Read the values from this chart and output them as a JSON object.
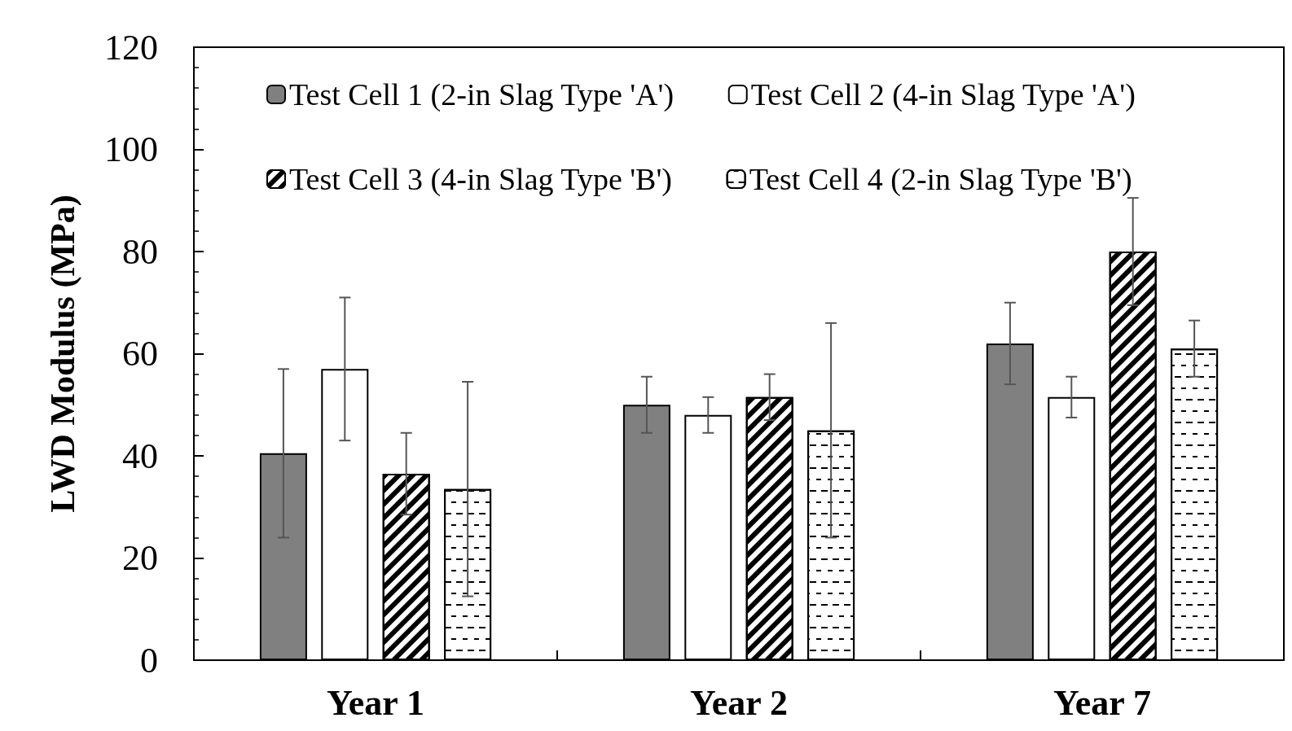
{
  "chart_data": {
    "type": "bar",
    "ylabel": "LWD Modulus (MPa)",
    "categories": [
      "Year 1",
      "Year 2",
      "Year 7"
    ],
    "ylim": [
      0,
      120
    ],
    "yticks": [
      0,
      20,
      40,
      60,
      80,
      100,
      120
    ],
    "grid": false,
    "legend": "top",
    "series": [
      {
        "name": "Test Cell 1 (2-in Slag Type 'A')",
        "color": "#808080",
        "values": [
          40.5,
          50,
          62
        ],
        "errors": [
          16.5,
          5.5,
          8
        ]
      },
      {
        "name": "Test Cell 2 (4-in Slag Type 'A')",
        "color": "#ffffff",
        "values": [
          57,
          48,
          51.5
        ],
        "errors": [
          14,
          3.5,
          4
        ]
      },
      {
        "name": "Test Cell 3 (4-in Slag Type 'B')",
        "color": "#ffffff",
        "values": [
          36.5,
          51.5,
          80
        ],
        "errors": [
          8,
          4.5,
          10.5
        ]
      },
      {
        "name": "Test Cell 4 (2-in Slag Type 'B')",
        "color": "#ffffff",
        "values": [
          33.5,
          45,
          61
        ],
        "errors": [
          21,
          21,
          5.5
        ]
      }
    ]
  }
}
